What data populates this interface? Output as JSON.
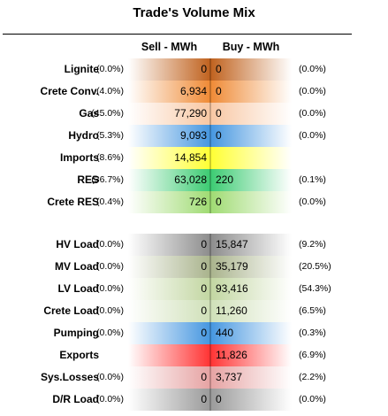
{
  "title": "Trade's Volume Mix",
  "headers": {
    "sell": "Sell - MWh",
    "buy": "Buy - MWh"
  },
  "rows": [
    {
      "label": "Lignite",
      "sell_pct": "(0.0%)",
      "sell_value": "0",
      "buy_value": "0",
      "buy_pct": "(0.0%)",
      "color": "#c0621e"
    },
    {
      "label": "Crete Conv.",
      "sell_pct": "(4.0%)",
      "sell_value": "6,934",
      "buy_value": "0",
      "buy_pct": "(0.0%)",
      "color": "#ef8a35"
    },
    {
      "label": "Gas",
      "sell_pct": "(45.0%)",
      "sell_value": "77,290",
      "buy_value": "0",
      "buy_pct": "(0.0%)",
      "color": "#f8c7a3"
    },
    {
      "label": "Hydro",
      "sell_pct": "(5.3%)",
      "sell_value": "9,093",
      "buy_value": "0",
      "buy_pct": "(0.0%)",
      "color": "#4596e0"
    },
    {
      "label": "Imports",
      "sell_pct": "(8.6%)",
      "sell_value": "14,854",
      "buy_value": "",
      "buy_pct": "",
      "color": "#ffff33"
    },
    {
      "label": "RES",
      "sell_pct": "(36.7%)",
      "sell_value": "63,028",
      "buy_value": "220",
      "buy_pct": "(0.1%)",
      "color": "#3ccb72"
    },
    {
      "label": "Crete RES",
      "sell_pct": "(0.4%)",
      "sell_value": "726",
      "buy_value": "0",
      "buy_pct": "(0.0%)",
      "color": "#9fdb72"
    },
    {
      "label": "HV Load",
      "sell_pct": "(0.0%)",
      "sell_value": "0",
      "buy_value": "15,847",
      "buy_pct": "(9.2%)",
      "color": "#8c8c8c"
    },
    {
      "label": "MV Load",
      "sell_pct": "(0.0%)",
      "sell_value": "0",
      "buy_value": "35,179",
      "buy_pct": "(20.5%)",
      "color": "#a9b38c"
    },
    {
      "label": "LV Load",
      "sell_pct": "(0.0%)",
      "sell_value": "0",
      "buy_value": "93,416",
      "buy_pct": "(54.3%)",
      "color": "#c2d6a1"
    },
    {
      "label": "Crete Load",
      "sell_pct": "(0.0%)",
      "sell_value": "0",
      "buy_value": "11,260",
      "buy_pct": "(6.5%)",
      "color": "#cfe0b8"
    },
    {
      "label": "Pumping",
      "sell_pct": "(0.0%)",
      "sell_value": "0",
      "buy_value": "440",
      "buy_pct": "(0.3%)",
      "color": "#4596e0"
    },
    {
      "label": "Exports",
      "sell_pct": "",
      "sell_value": "",
      "buy_value": "11,826",
      "buy_pct": "(6.9%)",
      "color": "#ff3333"
    },
    {
      "label": "Sys.Losses",
      "sell_pct": "(0.0%)",
      "sell_value": "0",
      "buy_value": "3,737",
      "buy_pct": "(2.2%)",
      "color": "#e6a3a3"
    },
    {
      "label": "D/R Load",
      "sell_pct": "(0.0%)",
      "sell_value": "0",
      "buy_value": "0",
      "buy_pct": "(0.0%)",
      "color": "#9a9a9a"
    }
  ]
}
